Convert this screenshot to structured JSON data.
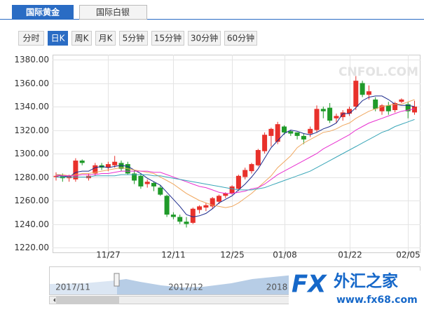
{
  "tabs": [
    "国际黄金",
    "国际白银"
  ],
  "periods": [
    "分时",
    "日K",
    "周K",
    "月K",
    "5分钟",
    "15分钟",
    "30分钟",
    "60分钟"
  ],
  "active_period": 1,
  "navigator_labels": [
    "2017/11",
    "2017/12",
    "2018"
  ],
  "watermark": "CNFOL.COM",
  "logo": {
    "fx": "FX",
    "name": "外汇之家",
    "url": "www.fx68.com"
  },
  "chart_data": {
    "type": "candlestick",
    "up_color": "#e8312b",
    "down_color": "#1f9a29",
    "categories": [
      null,
      null,
      null,
      null,
      null,
      null,
      null,
      null,
      "11/27",
      null,
      null,
      null,
      null,
      null,
      null,
      null,
      null,
      null,
      "12/11",
      null,
      null,
      null,
      null,
      null,
      null,
      null,
      null,
      "12/25",
      null,
      null,
      null,
      null,
      null,
      null,
      null,
      "01/08",
      null,
      null,
      null,
      null,
      null,
      null,
      null,
      null,
      null,
      "01/22",
      null,
      null,
      null,
      null,
      null,
      null,
      null,
      null,
      "02/05",
      null
    ],
    "open": [
      1280,
      1281,
      1279,
      1278,
      1294,
      1279,
      1283,
      1290,
      1288,
      1290,
      1292,
      1291,
      1283,
      1281,
      1274,
      1275,
      1271,
      1264,
      1248,
      1246,
      1242,
      1241,
      1252,
      1254,
      1255,
      1259,
      1264,
      1266,
      1270,
      1280,
      1285,
      1290,
      1302,
      1315,
      1310,
      1323,
      1319,
      1318,
      1315,
      1317,
      1320,
      1338,
      1339,
      1330,
      1331,
      1334,
      1340,
      1360,
      1350,
      1346,
      1336,
      1341,
      1337,
      1344,
      1342,
      1335
    ],
    "close": [
      1281,
      1279,
      1281,
      1294,
      1292,
      1281,
      1290,
      1288,
      1291,
      1293,
      1287,
      1283,
      1277,
      1272,
      1276,
      1272,
      1265,
      1248,
      1246,
      1242,
      1240,
      1253,
      1255,
      1256,
      1262,
      1264,
      1266,
      1272,
      1281,
      1286,
      1291,
      1303,
      1316,
      1321,
      1325,
      1318,
      1317,
      1315,
      1312,
      1321,
      1338,
      1336,
      1328,
      1332,
      1335,
      1338,
      1362,
      1350,
      1353,
      1338,
      1341,
      1336,
      1343,
      1346,
      1336,
      1340
    ],
    "low": [
      1277,
      1276,
      1276,
      1276,
      1290,
      1277,
      1281,
      1286,
      1285,
      1288,
      1285,
      1282,
      1274,
      1270,
      1271,
      1268,
      1264,
      1246,
      1244,
      1240,
      1237,
      1240,
      1249,
      1251,
      1253,
      1257,
      1262,
      1265,
      1268,
      1278,
      1283,
      1289,
      1300,
      1306,
      1308,
      1316,
      1315,
      1312,
      1308,
      1314,
      1318,
      1330,
      1326,
      1326,
      1328,
      1332,
      1337,
      1348,
      1346,
      1336,
      1333,
      1333,
      1335,
      1343,
      1330,
      1333
    ],
    "high": [
      1284,
      1283,
      1282,
      1296,
      1295,
      1283,
      1292,
      1292,
      1293,
      1298,
      1294,
      1293,
      1286,
      1283,
      1278,
      1276,
      1273,
      1265,
      1250,
      1248,
      1246,
      1254,
      1256,
      1258,
      1263,
      1265,
      1267,
      1273,
      1282,
      1288,
      1292,
      1304,
      1318,
      1322,
      1327,
      1324,
      1320,
      1318,
      1317,
      1323,
      1341,
      1340,
      1343,
      1334,
      1337,
      1340,
      1366,
      1362,
      1358,
      1348,
      1342,
      1344,
      1344,
      1347,
      1344,
      1345
    ],
    "series": [
      {
        "color": "#1b2a8c",
        "values": [
          1282,
          1281,
          1280,
          1284,
          1285,
          1285,
          1288,
          1289,
          1288,
          1289,
          1290,
          1289,
          1286,
          1283,
          1279,
          1276,
          1273,
          1267,
          1261,
          1255,
          1248,
          1246,
          1247,
          1249,
          1253,
          1258,
          1261,
          1264,
          1269,
          1274,
          1280,
          1287,
          1296,
          1305,
          1311,
          1317,
          1320,
          1319,
          1317,
          1316,
          1318,
          1321,
          1323,
          1326,
          1334,
          1334,
          1339,
          1345,
          1348,
          1349,
          1349,
          1346,
          1342,
          1341,
          1341,
          1340
        ]
      },
      {
        "color": "#f0a860",
        "values": [
          1282,
          1282,
          1281,
          1282,
          1283,
          1283,
          1284,
          1285,
          1286,
          1287,
          1288,
          1287,
          1286,
          1285,
          1284,
          1283,
          1280,
          1277,
          1274,
          1270,
          1266,
          1263,
          1260,
          1258,
          1256,
          1255,
          1254,
          1255,
          1258,
          1262,
          1266,
          1271,
          1276,
          1281,
          1288,
          1293,
          1298,
          1305,
          1309,
          1312,
          1315,
          1318,
          1319,
          1321,
          1324,
          1326,
          1330,
          1333,
          1336,
          1338,
          1340,
          1341,
          1342,
          1342,
          1344,
          1346
        ]
      },
      {
        "color": "#e830d0",
        "values": [
          1281,
          1281,
          1281,
          1281,
          1282,
          1282,
          1282,
          1283,
          1283,
          1284,
          1285,
          1285,
          1285,
          1285,
          1285,
          1284,
          1284,
          1282,
          1280,
          1278,
          1276,
          1274,
          1272,
          1271,
          1269,
          1267,
          1266,
          1266,
          1267,
          1268,
          1270,
          1271,
          1274,
          1278,
          1282,
          1285,
          1288,
          1291,
          1294,
          1297,
          1300,
          1304,
          1307,
          1310,
          1313,
          1316,
          1320,
          1323,
          1326,
          1328,
          1330,
          1332,
          1334,
          1336,
          1337,
          1338
        ]
      },
      {
        "color": "#3aa6b8",
        "values": [
          1280,
          1280,
          1280,
          1280,
          1280,
          1280,
          1281,
          1281,
          1281,
          1281,
          1282,
          1282,
          1282,
          1282,
          1282,
          1281,
          1281,
          1280,
          1279,
          1278,
          1277,
          1276,
          1275,
          1274,
          1273,
          1272,
          1271,
          1270,
          1269,
          1269,
          1269,
          1270,
          1271,
          1273,
          1275,
          1277,
          1279,
          1281,
          1283,
          1285,
          1288,
          1291,
          1294,
          1297,
          1300,
          1303,
          1306,
          1309,
          1312,
          1315,
          1318,
          1320,
          1323,
          1325,
          1327,
          1329
        ]
      }
    ],
    "ylim": [
      1220,
      1380
    ],
    "yticks": [
      {
        "value": 1220,
        "label": "1220.00"
      },
      {
        "value": 1240,
        "label": "1240.00"
      },
      {
        "value": 1260,
        "label": "1260.00"
      },
      {
        "value": 1280,
        "label": "1280.00"
      },
      {
        "value": 1300,
        "label": "1300.00"
      },
      {
        "value": 1320,
        "label": "1320.00"
      },
      {
        "value": 1340,
        "label": "1340.00"
      },
      {
        "value": 1360,
        "label": "1360.00"
      },
      {
        "value": 1380,
        "label": "1380.00"
      }
    ],
    "grid": true
  }
}
